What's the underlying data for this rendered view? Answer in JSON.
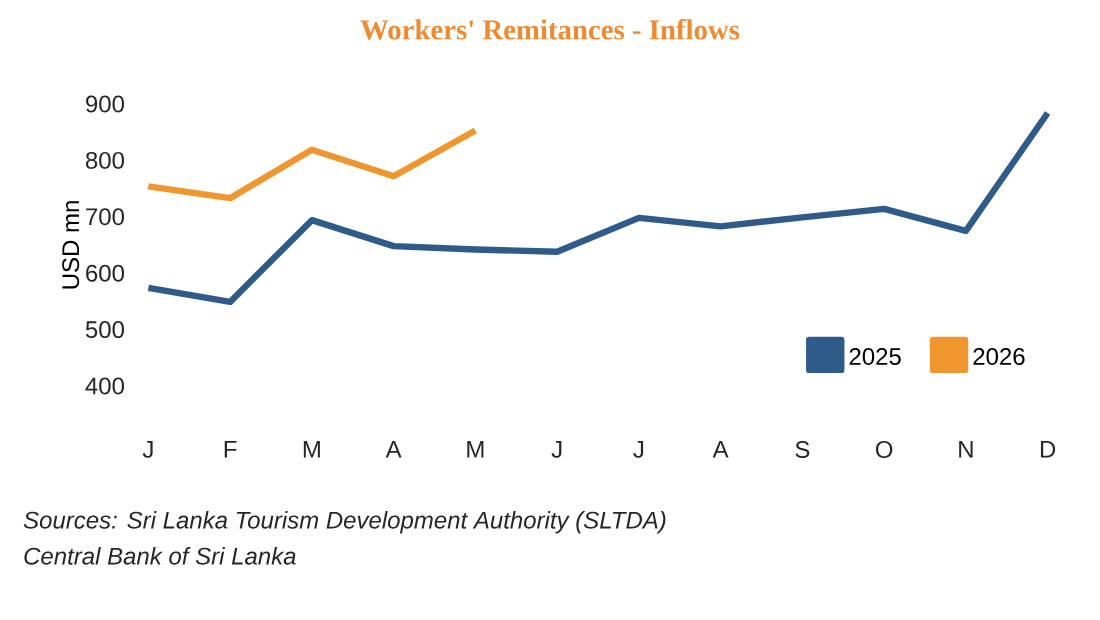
{
  "chart_data": {
    "type": "line",
    "title": "Workers' Remitances - Inflows",
    "ylabel": "USD mn",
    "categories": [
      "J",
      "F",
      "M",
      "A",
      "M",
      "J",
      "J",
      "A",
      "S",
      "O",
      "N",
      "D"
    ],
    "series": [
      {
        "name": "2025",
        "color": "#2e5b8a",
        "values": [
          574,
          549,
          694,
          648,
          642,
          638,
          698,
          683,
          699,
          714,
          675,
          884
        ]
      },
      {
        "name": "2026",
        "color": "#f0962e",
        "values": [
          754,
          733,
          819,
          772,
          853,
          null,
          null,
          null,
          null,
          null,
          null,
          null
        ]
      }
    ],
    "ylim": [
      400,
      900
    ],
    "yticks": [
      400,
      500,
      600,
      700,
      800,
      900
    ],
    "legend": "bottom right",
    "annotations": [
      "Sources: Sri Lanka Tourism Development Authority (SLTDA)",
      "Central Bank of Sri Lanka"
    ]
  }
}
